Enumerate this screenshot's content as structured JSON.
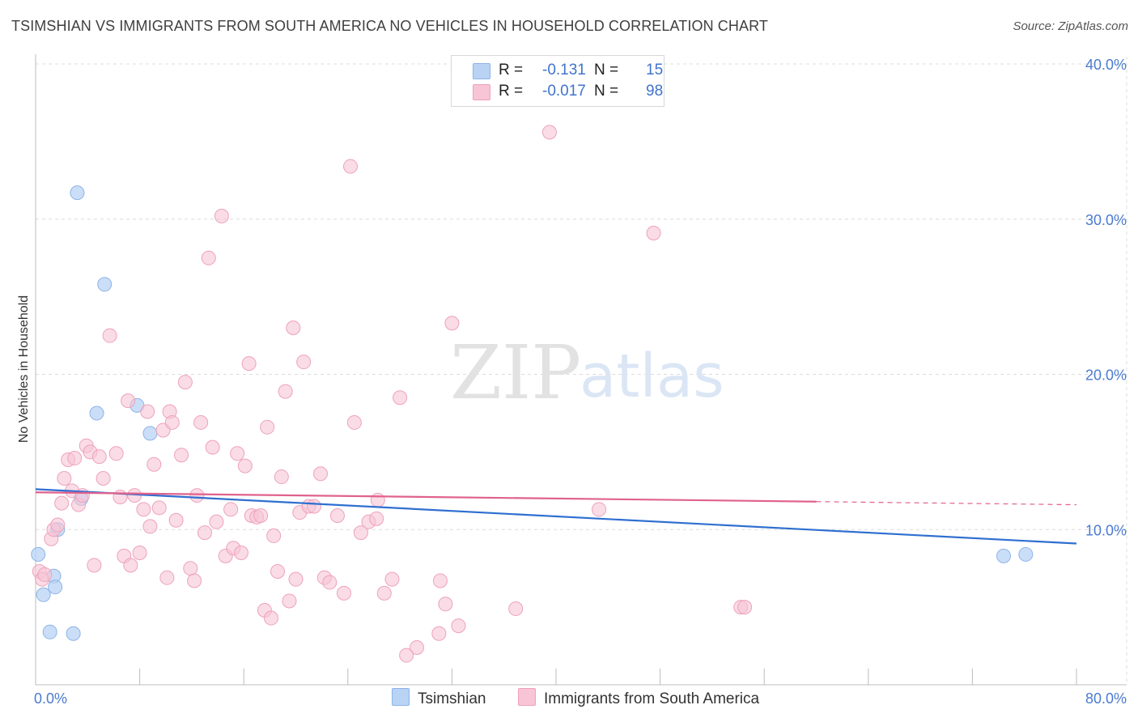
{
  "title": "TSIMSHIAN VS IMMIGRANTS FROM SOUTH AMERICA NO VEHICLES IN HOUSEHOLD CORRELATION CHART",
  "source": "Source: ZipAtlas.com",
  "watermark": {
    "zip": "ZIP",
    "atlas": "atlas"
  },
  "legend": {
    "rows": [
      {
        "r_label": "R =",
        "r_value": "-0.131",
        "n_label": "N =",
        "n_value": "15"
      },
      {
        "r_label": "R =",
        "r_value": "-0.017",
        "n_label": "N =",
        "n_value": "98"
      }
    ]
  },
  "bottom_legend": {
    "series1": "Tsimshian",
    "series2": "Immigrants from South America"
  },
  "colors": {
    "series1_fill": "#b9d3f5",
    "series1_stroke": "#8db3e6",
    "series1_line": "#2f6fd0",
    "series2_fill": "#f7c5d5",
    "series2_stroke": "#eea2bb",
    "series2_line": "#e0628c",
    "grid": "#dcdcdc",
    "tick_text": "#4a7bd0"
  },
  "chart_data": {
    "type": "scatter",
    "title": "TSIMSHIAN VS IMMIGRANTS FROM SOUTH AMERICA NO VEHICLES IN HOUSEHOLD CORRELATION CHART",
    "xlabel": "",
    "ylabel": "No Vehicles in Household",
    "xlim": [
      0,
      80
    ],
    "ylim": [
      0,
      40
    ],
    "x_tick_labels": [
      "0.0%",
      "80.0%"
    ],
    "y_tick_labels": [
      "10.0%",
      "20.0%",
      "30.0%",
      "40.0%"
    ],
    "y_ticks": [
      10,
      20,
      30,
      40
    ],
    "series": [
      {
        "name": "Tsimshian",
        "points": [
          [
            0.2,
            8.4
          ],
          [
            0.6,
            5.8
          ],
          [
            1.1,
            3.4
          ],
          [
            1.4,
            7.0
          ],
          [
            1.5,
            6.3
          ],
          [
            1.7,
            10.0
          ],
          [
            2.9,
            3.3
          ],
          [
            3.2,
            31.7
          ],
          [
            3.5,
            12.0
          ],
          [
            4.7,
            17.5
          ],
          [
            5.3,
            25.8
          ],
          [
            7.8,
            18.0
          ],
          [
            8.8,
            16.2
          ],
          [
            74.4,
            8.3
          ],
          [
            76.1,
            8.4
          ]
        ],
        "trend": {
          "x": [
            0,
            80
          ],
          "y": [
            12.6,
            9.1
          ],
          "dashed_from": null
        }
      },
      {
        "name": "Immigrants from South America",
        "points": [
          [
            0.3,
            7.3
          ],
          [
            0.5,
            6.8
          ],
          [
            0.7,
            7.1
          ],
          [
            1.2,
            9.4
          ],
          [
            1.4,
            10.0
          ],
          [
            1.7,
            10.3
          ],
          [
            2.0,
            11.7
          ],
          [
            2.2,
            13.3
          ],
          [
            2.5,
            14.5
          ],
          [
            2.8,
            12.5
          ],
          [
            3.0,
            14.6
          ],
          [
            3.3,
            11.6
          ],
          [
            3.6,
            12.2
          ],
          [
            3.9,
            15.4
          ],
          [
            4.2,
            15.0
          ],
          [
            4.5,
            7.7
          ],
          [
            4.9,
            14.7
          ],
          [
            5.2,
            13.3
          ],
          [
            5.7,
            22.5
          ],
          [
            6.2,
            14.9
          ],
          [
            6.5,
            12.1
          ],
          [
            6.8,
            8.3
          ],
          [
            7.1,
            18.3
          ],
          [
            7.3,
            7.7
          ],
          [
            7.6,
            12.2
          ],
          [
            8.0,
            8.5
          ],
          [
            8.3,
            11.3
          ],
          [
            8.6,
            17.6
          ],
          [
            8.8,
            10.2
          ],
          [
            9.1,
            14.2
          ],
          [
            9.5,
            11.4
          ],
          [
            9.8,
            16.4
          ],
          [
            10.1,
            6.9
          ],
          [
            10.3,
            17.6
          ],
          [
            10.5,
            16.9
          ],
          [
            10.8,
            10.6
          ],
          [
            11.2,
            14.8
          ],
          [
            11.5,
            19.5
          ],
          [
            11.9,
            7.5
          ],
          [
            12.2,
            6.7
          ],
          [
            12.4,
            12.2
          ],
          [
            12.7,
            16.9
          ],
          [
            13.0,
            9.8
          ],
          [
            13.3,
            27.5
          ],
          [
            13.6,
            15.3
          ],
          [
            13.9,
            10.5
          ],
          [
            14.3,
            30.2
          ],
          [
            14.6,
            8.3
          ],
          [
            15.0,
            11.3
          ],
          [
            15.2,
            8.8
          ],
          [
            15.5,
            14.9
          ],
          [
            15.8,
            8.5
          ],
          [
            16.1,
            14.1
          ],
          [
            16.4,
            20.7
          ],
          [
            16.6,
            10.9
          ],
          [
            17.0,
            10.8
          ],
          [
            17.3,
            10.9
          ],
          [
            17.6,
            4.8
          ],
          [
            17.8,
            16.6
          ],
          [
            18.1,
            4.3
          ],
          [
            18.3,
            9.6
          ],
          [
            18.6,
            7.3
          ],
          [
            18.9,
            13.4
          ],
          [
            19.2,
            18.9
          ],
          [
            19.5,
            5.4
          ],
          [
            19.8,
            23.0
          ],
          [
            20.0,
            6.8
          ],
          [
            20.3,
            11.1
          ],
          [
            20.6,
            20.8
          ],
          [
            21.0,
            11.5
          ],
          [
            21.4,
            11.5
          ],
          [
            21.9,
            13.6
          ],
          [
            22.2,
            6.9
          ],
          [
            22.6,
            6.6
          ],
          [
            23.2,
            10.9
          ],
          [
            23.7,
            5.9
          ],
          [
            24.2,
            33.4
          ],
          [
            24.5,
            16.9
          ],
          [
            25.0,
            9.8
          ],
          [
            25.6,
            10.5
          ],
          [
            26.2,
            10.7
          ],
          [
            26.8,
            5.9
          ],
          [
            27.4,
            6.8
          ],
          [
            28.0,
            18.5
          ],
          [
            29.3,
            2.4
          ],
          [
            31.1,
            6.7
          ],
          [
            31.5,
            5.2
          ],
          [
            32.0,
            23.3
          ],
          [
            36.9,
            4.9
          ],
          [
            39.5,
            35.6
          ],
          [
            43.3,
            11.3
          ],
          [
            47.5,
            29.1
          ],
          [
            54.2,
            5.0
          ],
          [
            54.5,
            5.0
          ],
          [
            28.5,
            1.9
          ],
          [
            26.3,
            11.9
          ],
          [
            31.0,
            3.3
          ],
          [
            32.5,
            3.8
          ]
        ],
        "trend": {
          "x": [
            0,
            80
          ],
          "y": [
            12.4,
            11.6
          ],
          "dashed_from": 60
        }
      }
    ]
  }
}
